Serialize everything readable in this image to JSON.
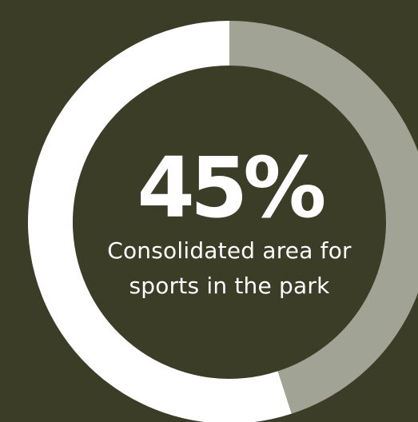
{
  "colors": {
    "background": "#3c3d27",
    "ring_filled": "#a1a394",
    "ring_remainder": "#ffffff",
    "text": "#ffffff"
  },
  "chart_data": {
    "type": "pie",
    "style": "donut",
    "value_label": "45%",
    "caption": "Consolidated area for sports in the park",
    "slices": [
      {
        "value": 45,
        "color": "#a1a394"
      },
      {
        "value": 55,
        "color": "#ffffff"
      }
    ]
  }
}
